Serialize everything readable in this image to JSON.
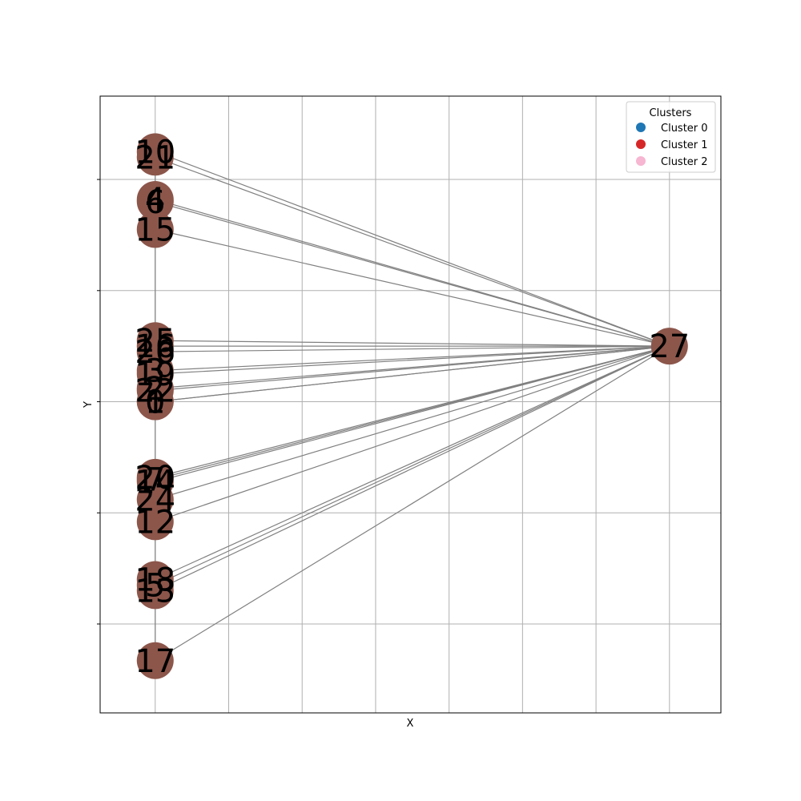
{
  "chart_data": {
    "type": "scatter",
    "xlabel": "X",
    "ylabel": "Y",
    "grid": true,
    "legend": {
      "title": "Clusters",
      "placement": "top-right",
      "entries": [
        {
          "label": "Cluster 0",
          "color": "#1f77b4"
        },
        {
          "label": "Cluster 1",
          "color": "#d62728"
        },
        {
          "label": "Cluster 2",
          "color": "#f7b6d2"
        }
      ]
    },
    "node_color": "#8c564b",
    "edge_color": "#808080",
    "nodes": [
      {
        "id": "10",
        "x": 0,
        "y": 2.25
      },
      {
        "id": "21",
        "x": 0,
        "y": 2.2
      },
      {
        "id": "6",
        "x": 0,
        "y": 1.8
      },
      {
        "id": "4",
        "x": 0,
        "y": 1.82
      },
      {
        "id": "15",
        "x": 0,
        "y": 1.55
      },
      {
        "id": "16",
        "x": 0,
        "y": 0.5
      },
      {
        "id": "25",
        "x": 0,
        "y": 0.55
      },
      {
        "id": "26",
        "x": 0,
        "y": 0.45
      },
      {
        "id": "3",
        "x": 0,
        "y": 0.28
      },
      {
        "id": "19",
        "x": 0,
        "y": 0.25
      },
      {
        "id": "2",
        "x": 0,
        "y": 0.12
      },
      {
        "id": "22",
        "x": 0,
        "y": 0.1
      },
      {
        "id": "0",
        "x": 0,
        "y": 0.0
      },
      {
        "id": "1",
        "x": 0,
        "y": 0.0
      },
      {
        "id": "20",
        "x": 0,
        "y": -0.68
      },
      {
        "id": "7",
        "x": 0,
        "y": -0.7
      },
      {
        "id": "14",
        "x": 0,
        "y": -0.72
      },
      {
        "id": "24",
        "x": 0,
        "y": -0.88
      },
      {
        "id": "12",
        "x": 0,
        "y": -1.08
      },
      {
        "id": "18",
        "x": 0,
        "y": -1.6
      },
      {
        "id": "5",
        "x": 0,
        "y": -1.65
      },
      {
        "id": "13",
        "x": 0,
        "y": -1.7
      },
      {
        "id": "17",
        "x": 0,
        "y": -2.33
      },
      {
        "id": "27",
        "x": 7.0,
        "y": 0.5
      }
    ],
    "edges": [
      [
        "27",
        "10"
      ],
      [
        "27",
        "21"
      ],
      [
        "27",
        "6"
      ],
      [
        "27",
        "4"
      ],
      [
        "27",
        "15"
      ],
      [
        "27",
        "16"
      ],
      [
        "27",
        "25"
      ],
      [
        "27",
        "26"
      ],
      [
        "27",
        "3"
      ],
      [
        "27",
        "19"
      ],
      [
        "27",
        "2"
      ],
      [
        "27",
        "22"
      ],
      [
        "27",
        "0"
      ],
      [
        "27",
        "1"
      ],
      [
        "27",
        "20"
      ],
      [
        "27",
        "7"
      ],
      [
        "27",
        "14"
      ],
      [
        "27",
        "24"
      ],
      [
        "27",
        "12"
      ],
      [
        "27",
        "18"
      ],
      [
        "27",
        "5"
      ],
      [
        "27",
        "13"
      ],
      [
        "27",
        "17"
      ],
      [
        "10",
        "21"
      ],
      [
        "21",
        "6"
      ],
      [
        "6",
        "15"
      ],
      [
        "15",
        "16"
      ],
      [
        "16",
        "25"
      ],
      [
        "25",
        "26"
      ],
      [
        "26",
        "3"
      ],
      [
        "3",
        "19"
      ],
      [
        "19",
        "2"
      ],
      [
        "2",
        "0"
      ],
      [
        "0",
        "20"
      ],
      [
        "20",
        "14"
      ],
      [
        "14",
        "24"
      ],
      [
        "24",
        "12"
      ],
      [
        "12",
        "18"
      ],
      [
        "18",
        "5"
      ],
      [
        "5",
        "13"
      ],
      [
        "13",
        "17"
      ]
    ],
    "xlim": [
      -0.75,
      7.7
    ],
    "ylim": [
      -2.8,
      2.75
    ]
  }
}
